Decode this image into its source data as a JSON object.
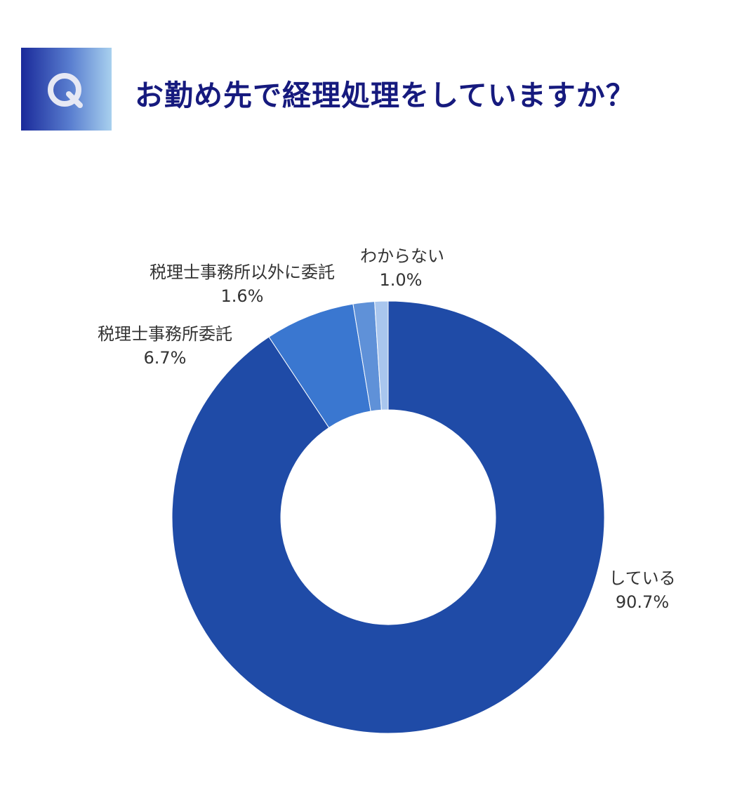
{
  "header": {
    "badge_letter": "Q",
    "title": "お勤め先で経理処理をしていますか？"
  },
  "colors": {
    "title": "#161a7e",
    "slices": [
      "#1f4ba7",
      "#3a77d0",
      "#5f91d8",
      "#a9c6ee"
    ]
  },
  "chart_data": {
    "type": "pie",
    "donut": true,
    "slices": [
      {
        "label": "している",
        "value": 90.7,
        "value_label": "90.7%"
      },
      {
        "label": "税理士事務所委託",
        "value": 6.7,
        "value_label": "6.7%"
      },
      {
        "label": "税理士事務所以外に委託",
        "value": 1.6,
        "value_label": "1.6%"
      },
      {
        "label": "わからない",
        "value": 1.0,
        "value_label": "1.0%"
      }
    ]
  }
}
